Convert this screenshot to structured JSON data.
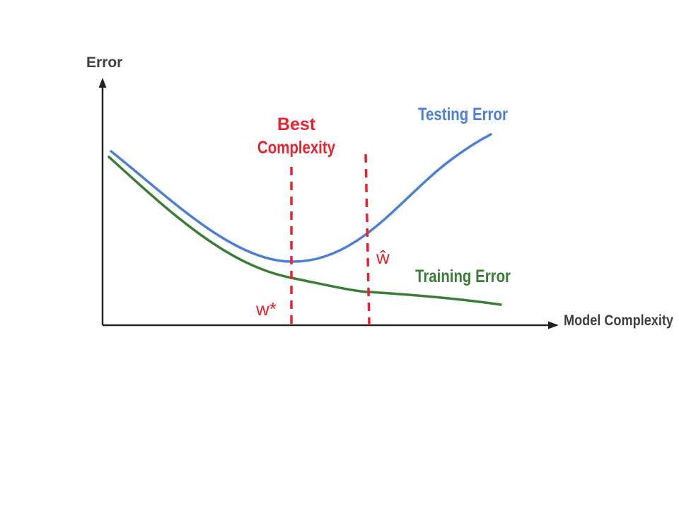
{
  "axes": {
    "y_label": "Error",
    "x_label": "Model Complexity"
  },
  "curves": {
    "testing": {
      "label": "Testing Error",
      "color": "#4a7fd4"
    },
    "training": {
      "label": "Training Error",
      "color": "#3a7d34"
    }
  },
  "markers": {
    "best": {
      "title_line1": "Best",
      "title_line2": "Complexity",
      "point_label": "w*",
      "color": "#e8232d"
    },
    "learned": {
      "point_label": "ŵ",
      "color": "#e8232d"
    }
  },
  "colors": {
    "axis": "#222222",
    "axis_text": "#404040",
    "background": "#ffffff"
  }
}
